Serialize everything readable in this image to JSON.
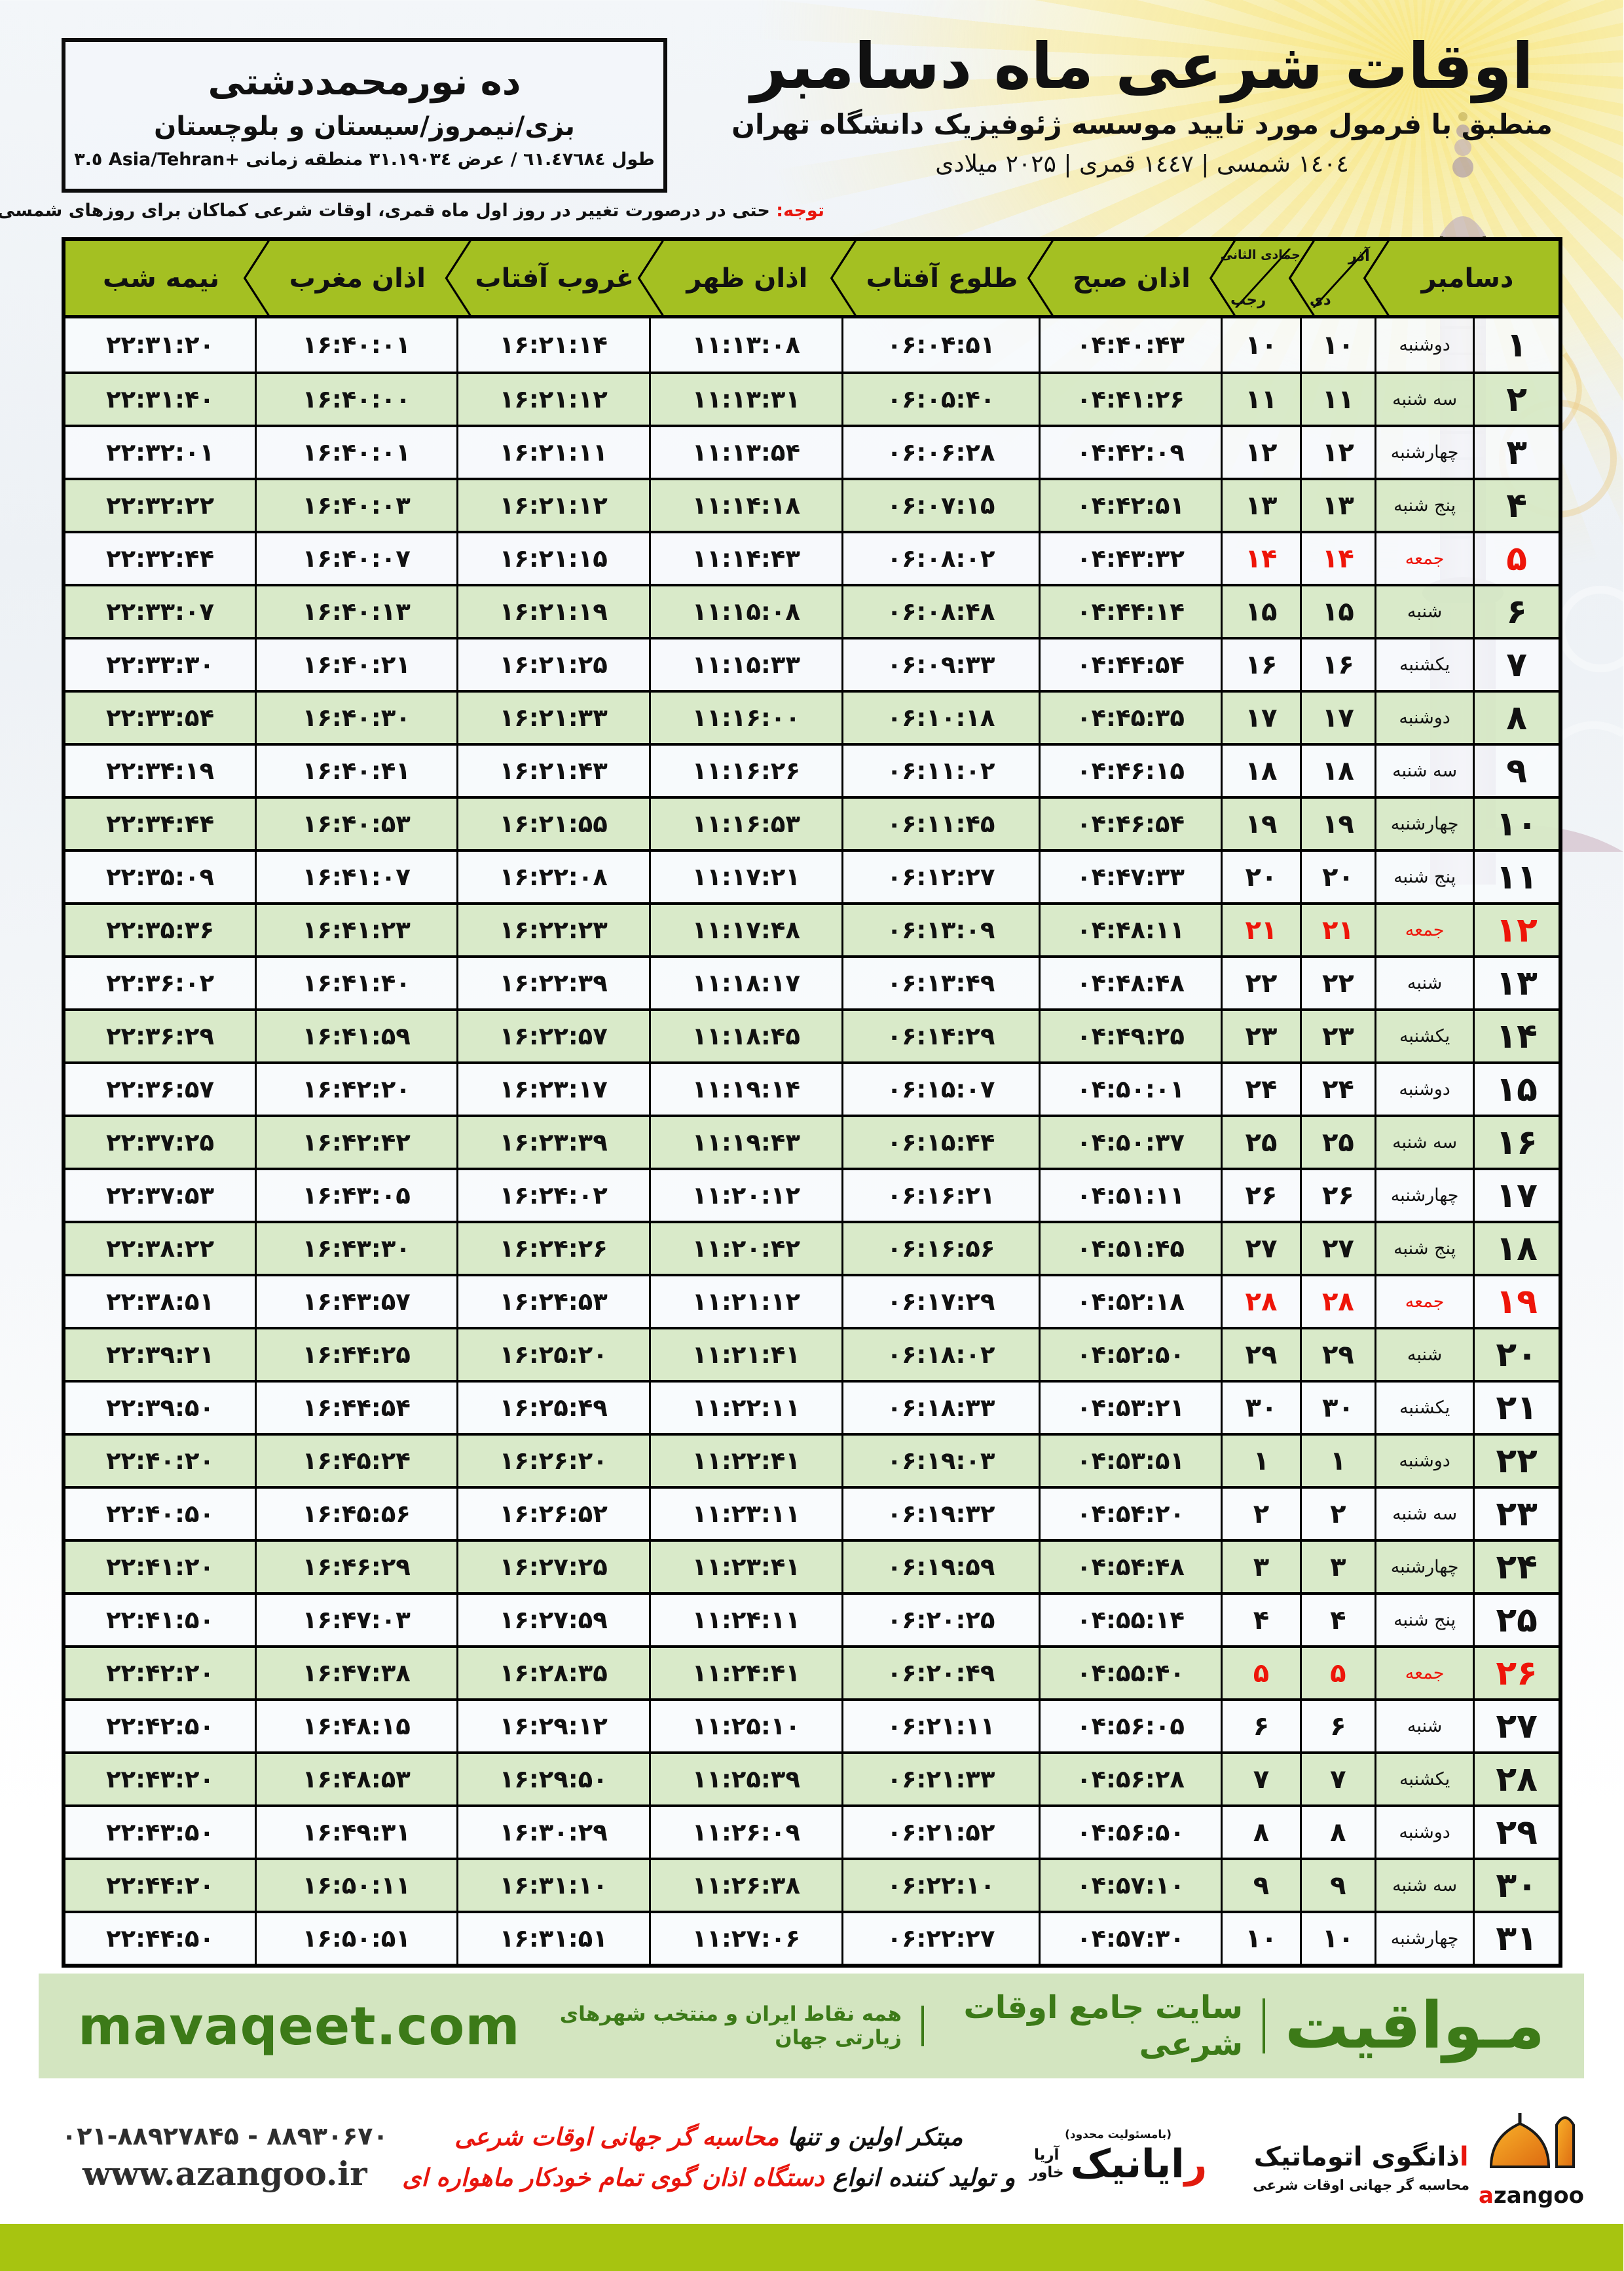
{
  "header": {
    "title": "اوقات شرعی ماه دسامبر",
    "subtitle": "منطبق با فرمول مورد تایید موسسه ژئوفیزیک دانشگاه تهران",
    "years": "١٤٠٤ شمسی | ١٤٤٧ قمری | ٢٠٢۵ میلادی",
    "location": {
      "name": "ده نورمحمددشتی",
      "region": "بزی/نیمروز/سیستان و بلوچستان",
      "coords": "طول ٦١.٤٧٦٨٤ / عرض ٣١.١٩٠٣٤ منطقه زمانی ‎+٣.٥‎ Asia/Tehran"
    },
    "note_label": "توجه:",
    "note_text": " حتی در درصورت تغییر در روز اول ماه قمری، اوقات شرعی کماکان برای روزهای شمسی و میلادی معتبر است."
  },
  "table": {
    "columns": {
      "december": "دسامبر",
      "solar_top": "آذر",
      "solar_bottom": "دی",
      "lunar_top": "جمادی الثانی",
      "lunar_bottom": "رجب",
      "sobh": "اذان صبح",
      "tolu": "طلوع آفتاب",
      "zohr": "اذان ظهر",
      "ghorub": "غروب آفتاب",
      "maghreb": "اذان مغرب",
      "nimeh": "نیمه شب"
    },
    "rows": [
      {
        "d": 1,
        "w": "دوشنبه",
        "s": 10,
        "l": 10,
        "sobh": "04:40:43",
        "tolu": "06:04:51",
        "zohr": "11:13:08",
        "ghorub": "16:21:14",
        "maghreb": "16:40:01",
        "nimeh": "22:31:20",
        "f": false
      },
      {
        "d": 2,
        "w": "سه شنبه",
        "s": 11,
        "l": 11,
        "sobh": "04:41:26",
        "tolu": "06:05:40",
        "zohr": "11:13:31",
        "ghorub": "16:21:12",
        "maghreb": "16:40:00",
        "nimeh": "22:31:40",
        "f": false
      },
      {
        "d": 3,
        "w": "چهارشنبه",
        "s": 12,
        "l": 12,
        "sobh": "04:42:09",
        "tolu": "06:06:28",
        "zohr": "11:13:54",
        "ghorub": "16:21:11",
        "maghreb": "16:40:01",
        "nimeh": "22:32:01",
        "f": false
      },
      {
        "d": 4,
        "w": "پنج شنبه",
        "s": 13,
        "l": 13,
        "sobh": "04:42:51",
        "tolu": "06:07:15",
        "zohr": "11:14:18",
        "ghorub": "16:21:12",
        "maghreb": "16:40:03",
        "nimeh": "22:32:22",
        "f": false
      },
      {
        "d": 5,
        "w": "جمعه",
        "s": 14,
        "l": 14,
        "sobh": "04:43:32",
        "tolu": "06:08:02",
        "zohr": "11:14:43",
        "ghorub": "16:21:15",
        "maghreb": "16:40:07",
        "nimeh": "22:32:44",
        "f": true
      },
      {
        "d": 6,
        "w": "شنبه",
        "s": 15,
        "l": 15,
        "sobh": "04:44:14",
        "tolu": "06:08:48",
        "zohr": "11:15:08",
        "ghorub": "16:21:19",
        "maghreb": "16:40:13",
        "nimeh": "22:33:07",
        "f": false
      },
      {
        "d": 7,
        "w": "یکشنبه",
        "s": 16,
        "l": 16,
        "sobh": "04:44:54",
        "tolu": "06:09:33",
        "zohr": "11:15:33",
        "ghorub": "16:21:25",
        "maghreb": "16:40:21",
        "nimeh": "22:33:30",
        "f": false
      },
      {
        "d": 8,
        "w": "دوشنبه",
        "s": 17,
        "l": 17,
        "sobh": "04:45:35",
        "tolu": "06:10:18",
        "zohr": "11:16:00",
        "ghorub": "16:21:33",
        "maghreb": "16:40:30",
        "nimeh": "22:33:54",
        "f": false
      },
      {
        "d": 9,
        "w": "سه شنبه",
        "s": 18,
        "l": 18,
        "sobh": "04:46:15",
        "tolu": "06:11:02",
        "zohr": "11:16:26",
        "ghorub": "16:21:43",
        "maghreb": "16:40:41",
        "nimeh": "22:34:19",
        "f": false
      },
      {
        "d": 10,
        "w": "چهارشنبه",
        "s": 19,
        "l": 19,
        "sobh": "04:46:54",
        "tolu": "06:11:45",
        "zohr": "11:16:53",
        "ghorub": "16:21:55",
        "maghreb": "16:40:53",
        "nimeh": "22:34:44",
        "f": false
      },
      {
        "d": 11,
        "w": "پنج شنبه",
        "s": 20,
        "l": 20,
        "sobh": "04:47:33",
        "tolu": "06:12:27",
        "zohr": "11:17:21",
        "ghorub": "16:22:08",
        "maghreb": "16:41:07",
        "nimeh": "22:35:09",
        "f": false
      },
      {
        "d": 12,
        "w": "جمعه",
        "s": 21,
        "l": 21,
        "sobh": "04:48:11",
        "tolu": "06:13:09",
        "zohr": "11:17:48",
        "ghorub": "16:22:23",
        "maghreb": "16:41:23",
        "nimeh": "22:35:36",
        "f": true
      },
      {
        "d": 13,
        "w": "شنبه",
        "s": 22,
        "l": 22,
        "sobh": "04:48:48",
        "tolu": "06:13:49",
        "zohr": "11:18:17",
        "ghorub": "16:22:39",
        "maghreb": "16:41:40",
        "nimeh": "22:36:02",
        "f": false
      },
      {
        "d": 14,
        "w": "یکشنبه",
        "s": 23,
        "l": 23,
        "sobh": "04:49:25",
        "tolu": "06:14:29",
        "zohr": "11:18:45",
        "ghorub": "16:22:57",
        "maghreb": "16:41:59",
        "nimeh": "22:36:29",
        "f": false
      },
      {
        "d": 15,
        "w": "دوشنبه",
        "s": 24,
        "l": 24,
        "sobh": "04:50:01",
        "tolu": "06:15:07",
        "zohr": "11:19:14",
        "ghorub": "16:23:17",
        "maghreb": "16:42:20",
        "nimeh": "22:36:57",
        "f": false
      },
      {
        "d": 16,
        "w": "سه شنبه",
        "s": 25,
        "l": 25,
        "sobh": "04:50:37",
        "tolu": "06:15:44",
        "zohr": "11:19:43",
        "ghorub": "16:23:39",
        "maghreb": "16:42:42",
        "nimeh": "22:37:25",
        "f": false
      },
      {
        "d": 17,
        "w": "چهارشنبه",
        "s": 26,
        "l": 26,
        "sobh": "04:51:11",
        "tolu": "06:16:21",
        "zohr": "11:20:12",
        "ghorub": "16:24:02",
        "maghreb": "16:43:05",
        "nimeh": "22:37:53",
        "f": false
      },
      {
        "d": 18,
        "w": "پنج شنبه",
        "s": 27,
        "l": 27,
        "sobh": "04:51:45",
        "tolu": "06:16:56",
        "zohr": "11:20:42",
        "ghorub": "16:24:26",
        "maghreb": "16:43:30",
        "nimeh": "22:38:22",
        "f": false
      },
      {
        "d": 19,
        "w": "جمعه",
        "s": 28,
        "l": 28,
        "sobh": "04:52:18",
        "tolu": "06:17:29",
        "zohr": "11:21:12",
        "ghorub": "16:24:53",
        "maghreb": "16:43:57",
        "nimeh": "22:38:51",
        "f": true
      },
      {
        "d": 20,
        "w": "شنبه",
        "s": 29,
        "l": 29,
        "sobh": "04:52:50",
        "tolu": "06:18:02",
        "zohr": "11:21:41",
        "ghorub": "16:25:20",
        "maghreb": "16:44:25",
        "nimeh": "22:39:21",
        "f": false
      },
      {
        "d": 21,
        "w": "یکشنبه",
        "s": 30,
        "l": 30,
        "sobh": "04:53:21",
        "tolu": "06:18:33",
        "zohr": "11:22:11",
        "ghorub": "16:25:49",
        "maghreb": "16:44:54",
        "nimeh": "22:39:50",
        "f": false
      },
      {
        "d": 22,
        "w": "دوشنبه",
        "s": 1,
        "l": 1,
        "sobh": "04:53:51",
        "tolu": "06:19:03",
        "zohr": "11:22:41",
        "ghorub": "16:26:20",
        "maghreb": "16:45:24",
        "nimeh": "22:40:20",
        "f": false
      },
      {
        "d": 23,
        "w": "سه شنبه",
        "s": 2,
        "l": 2,
        "sobh": "04:54:20",
        "tolu": "06:19:32",
        "zohr": "11:23:11",
        "ghorub": "16:26:52",
        "maghreb": "16:45:56",
        "nimeh": "22:40:50",
        "f": false
      },
      {
        "d": 24,
        "w": "چهارشنبه",
        "s": 3,
        "l": 3,
        "sobh": "04:54:48",
        "tolu": "06:19:59",
        "zohr": "11:23:41",
        "ghorub": "16:27:25",
        "maghreb": "16:46:29",
        "nimeh": "22:41:20",
        "f": false
      },
      {
        "d": 25,
        "w": "پنج شنبه",
        "s": 4,
        "l": 4,
        "sobh": "04:55:14",
        "tolu": "06:20:25",
        "zohr": "11:24:11",
        "ghorub": "16:27:59",
        "maghreb": "16:47:03",
        "nimeh": "22:41:50",
        "f": false
      },
      {
        "d": 26,
        "w": "جمعه",
        "s": 5,
        "l": 5,
        "sobh": "04:55:40",
        "tolu": "06:20:49",
        "zohr": "11:24:41",
        "ghorub": "16:28:35",
        "maghreb": "16:47:38",
        "nimeh": "22:42:20",
        "f": true
      },
      {
        "d": 27,
        "w": "شنبه",
        "s": 6,
        "l": 6,
        "sobh": "04:56:05",
        "tolu": "06:21:11",
        "zohr": "11:25:10",
        "ghorub": "16:29:12",
        "maghreb": "16:48:15",
        "nimeh": "22:42:50",
        "f": false
      },
      {
        "d": 28,
        "w": "یکشنبه",
        "s": 7,
        "l": 7,
        "sobh": "04:56:28",
        "tolu": "06:21:33",
        "zohr": "11:25:39",
        "ghorub": "16:29:50",
        "maghreb": "16:48:53",
        "nimeh": "22:43:20",
        "f": false
      },
      {
        "d": 29,
        "w": "دوشنبه",
        "s": 8,
        "l": 8,
        "sobh": "04:56:50",
        "tolu": "06:21:52",
        "zohr": "11:26:09",
        "ghorub": "16:30:29",
        "maghreb": "16:49:31",
        "nimeh": "22:43:50",
        "f": false
      },
      {
        "d": 30,
        "w": "سه شنبه",
        "s": 9,
        "l": 9,
        "sobh": "04:57:10",
        "tolu": "06:22:10",
        "zohr": "11:26:38",
        "ghorub": "16:31:10",
        "maghreb": "16:50:11",
        "nimeh": "22:44:20",
        "f": false
      },
      {
        "d": 31,
        "w": "چهارشنبه",
        "s": 10,
        "l": 10,
        "sobh": "04:57:30",
        "tolu": "06:22:27",
        "zohr": "11:27:06",
        "ghorub": "16:31:51",
        "maghreb": "16:50:51",
        "nimeh": "22:44:50",
        "f": false
      }
    ]
  },
  "band": {
    "brand": "مـواقیت",
    "site_label": "سایت جامع اوقات شرعی",
    "tagline": "همه نقاط ایران و منتخب شهرهای زیارتی جهان",
    "url": "mavaqeet.com"
  },
  "footer": {
    "azangoo_en_red": "a",
    "azangoo_en_rest": "zangoo",
    "azangoo_fa_red": "ا",
    "azangoo_fa_rest": "ذانگوی اتوماتیک",
    "azangoo_sub": "محاسبه گر جهانی اوقات شرعی",
    "rayanik_top": "(بامسئولیت محدود)",
    "rayanik_red": "ر",
    "rayanik_rest": "ایانیک",
    "rayanik_side_top": "آریا",
    "rayanik_side_bottom": "خاور",
    "promo1_black": "مبتکر اولین و تنها ",
    "promo1_red": "محاسبه گر جهانی اوقات شرعی",
    "promo2_black": "و تولید کننده انواع ",
    "promo2_red": "دستگاه اذان گوی تمام خودکار ماهواره ای",
    "phones": "۰۲۱-۸۸۹۲۷۸۴۵ - ۸۸۹۳۰۶۷۰",
    "website": "www.azangoo.ir"
  },
  "colors": {
    "header_green": "#a4c022",
    "row_green": "#d7e9c6",
    "band_green": "#d3e5c0",
    "brand_green": "#3c7a18",
    "friday_red": "#ee1509",
    "strip_green": "#a7c410"
  }
}
